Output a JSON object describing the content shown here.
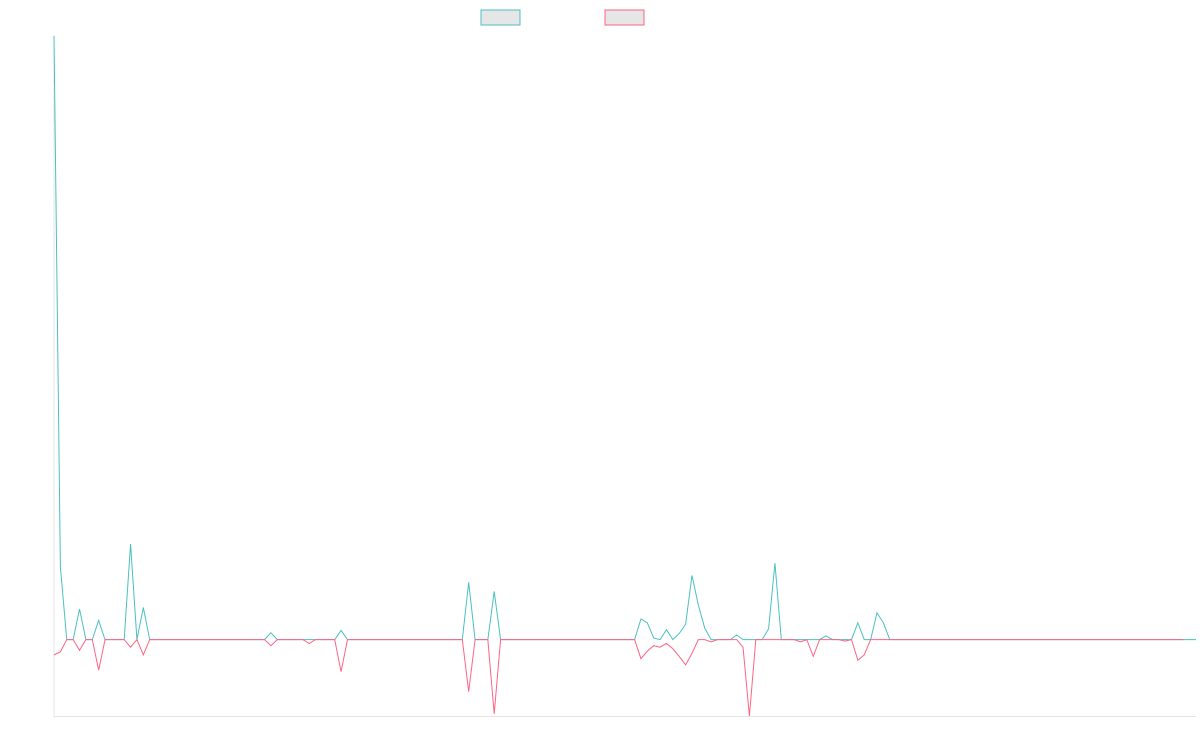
{
  "chart_data": {
    "type": "line",
    "title": "",
    "xlabel": "",
    "ylabel": "",
    "grid": false,
    "legend_position": "top-center",
    "ylim": [
      -100,
      790
    ],
    "series": [
      {
        "color": "#4bc0c0",
        "values": [
          790,
          95,
          0,
          0,
          40,
          0,
          0,
          25,
          0,
          0,
          0,
          0,
          125,
          0,
          42,
          0,
          0,
          0,
          0,
          0,
          0,
          0,
          0,
          0,
          0,
          0,
          0,
          0,
          0,
          0,
          0,
          0,
          0,
          0,
          9,
          0,
          0,
          0,
          0,
          0,
          0,
          0,
          0,
          0,
          0,
          12,
          0,
          0,
          0,
          0,
          0,
          0,
          0,
          0,
          0,
          0,
          0,
          0,
          0,
          0,
          0,
          0,
          0,
          0,
          0,
          75,
          0,
          0,
          0,
          63,
          0,
          0,
          0,
          0,
          0,
          0,
          0,
          0,
          0,
          0,
          0,
          0,
          0,
          0,
          0,
          0,
          0,
          0,
          0,
          0,
          0,
          0,
          27,
          22,
          2,
          0,
          13,
          0,
          8,
          20,
          84,
          45,
          15,
          0,
          0,
          0,
          0,
          6,
          0,
          0,
          0,
          0,
          14,
          100,
          0,
          0,
          0,
          0,
          0,
          0,
          0,
          5,
          0,
          0,
          0,
          0,
          22,
          0,
          0,
          35,
          22,
          0,
          0,
          0,
          0,
          0,
          0,
          0,
          0,
          0,
          0,
          0,
          0,
          0,
          0,
          0,
          0,
          0,
          0,
          0,
          0,
          0,
          0,
          0,
          0,
          0,
          0,
          0,
          0,
          0,
          0,
          0,
          0,
          0,
          0,
          0,
          0,
          0,
          0,
          0,
          0,
          0,
          0,
          0,
          0,
          0,
          0,
          0,
          0,
          0
        ]
      },
      {
        "color": "#ff6384",
        "values": [
          -20,
          -16,
          0,
          0,
          -14,
          0,
          0,
          -40,
          0,
          0,
          0,
          0,
          -10,
          0,
          -20,
          0,
          0,
          0,
          0,
          0,
          0,
          0,
          0,
          0,
          0,
          0,
          0,
          0,
          0,
          0,
          0,
          0,
          0,
          0,
          -8,
          0,
          0,
          0,
          0,
          0,
          -5,
          0,
          0,
          0,
          0,
          -42,
          0,
          0,
          0,
          0,
          0,
          0,
          0,
          0,
          0,
          0,
          0,
          0,
          0,
          0,
          0,
          0,
          0,
          0,
          0,
          -68,
          0,
          0,
          0,
          -97,
          0,
          0,
          0,
          0,
          0,
          0,
          0,
          0,
          0,
          0,
          0,
          0,
          0,
          0,
          0,
          0,
          0,
          0,
          0,
          0,
          0,
          0,
          -25,
          -15,
          -8,
          -10,
          -5,
          -12,
          -22,
          -33,
          -18,
          0,
          0,
          -3,
          0,
          0,
          0,
          0,
          -10,
          -100,
          0,
          0,
          0,
          0,
          0,
          0,
          0,
          -3,
          0,
          -22,
          0,
          0,
          0,
          0,
          -2,
          0,
          -27,
          -20,
          0,
          0,
          0,
          0,
          0,
          0,
          0,
          0,
          0,
          0,
          0,
          0,
          0,
          0,
          0,
          0,
          0,
          0,
          0,
          0,
          0,
          0,
          0,
          0,
          0,
          0,
          0,
          0,
          0,
          0,
          0,
          0,
          0,
          0,
          0,
          0,
          0,
          0,
          0,
          0,
          0,
          0,
          0,
          0,
          0,
          0,
          0,
          0,
          0,
          0
        ]
      }
    ]
  }
}
